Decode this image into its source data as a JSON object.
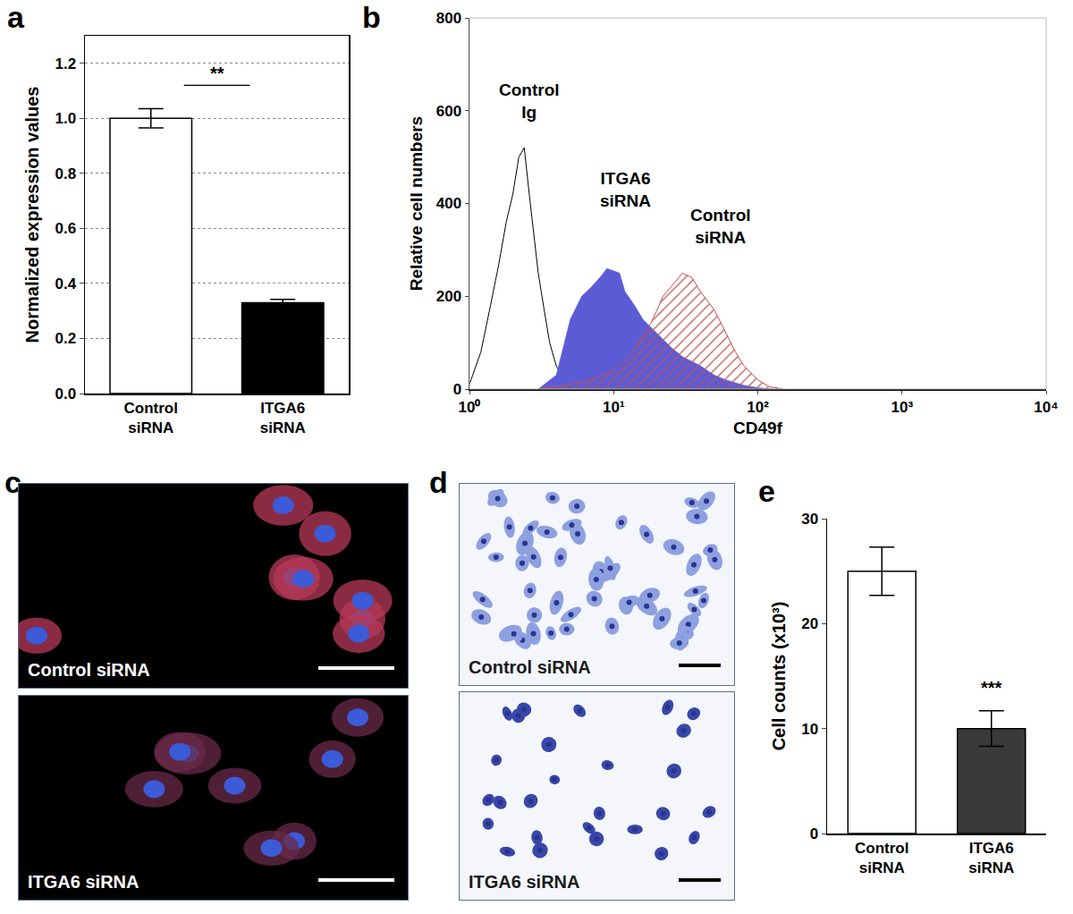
{
  "chart_data": [
    {
      "panel": "a",
      "type": "bar",
      "categories": [
        "Control siRNA",
        "ITGA6 siRNA"
      ],
      "values": [
        1.0,
        0.33
      ],
      "errors": [
        0.035,
        0.012
      ],
      "colors": [
        "#ffffff",
        "#000000"
      ],
      "y_label": "Normalized expression values",
      "ylim": [
        0,
        1.3
      ],
      "yticks": [
        {
          "value": 0,
          "label": "0.0"
        },
        {
          "value": 0.2,
          "label": "0.2"
        },
        {
          "value": 0.4,
          "label": "0.4"
        },
        {
          "value": 0.6,
          "label": "0.6"
        },
        {
          "value": 0.8,
          "label": "0.8"
        },
        {
          "value": 1.0,
          "label": "1.0"
        },
        {
          "value": 1.2,
          "label": "1.2"
        }
      ],
      "grid": true,
      "annotations": [
        {
          "text": "**",
          "y": 1.12,
          "span": [
            "Control siRNA",
            "ITGA6 siRNA"
          ]
        }
      ]
    },
    {
      "panel": "b",
      "type": "area",
      "log": "x",
      "x_label": "CD49f",
      "y_label": "Relative cell numbers",
      "xlim": [
        1,
        10000
      ],
      "xticks": [
        {
          "value": 1,
          "label": "10⁰"
        },
        {
          "value": 10,
          "label": "10¹"
        },
        {
          "value": 100,
          "label": "10²"
        },
        {
          "value": 1000,
          "label": "10³"
        },
        {
          "value": 10000,
          "label": "10⁴"
        }
      ],
      "ylim": [
        0,
        800
      ],
      "yticks": [
        0,
        200,
        400,
        600,
        800
      ],
      "grid": false,
      "series": [
        {
          "name": "Control Ig",
          "color": "#000000",
          "x": [
            1,
            1.2,
            1.4,
            1.6,
            1.8,
            2.0,
            2.2,
            2.4,
            2.6,
            2.8,
            3.0,
            3.3,
            3.6,
            4,
            4.5,
            5,
            5.5
          ],
          "values": [
            10,
            80,
            180,
            270,
            360,
            420,
            500,
            520,
            420,
            330,
            250,
            170,
            100,
            50,
            20,
            5,
            0
          ],
          "label_x": 2.6,
          "label_y": 620
        },
        {
          "name": "ITGA6 siRNA",
          "color": "#5b5bd6",
          "x": [
            3,
            4,
            5,
            6,
            7,
            8,
            9,
            10,
            11,
            12,
            14,
            16,
            20,
            25,
            30,
            40,
            50,
            60,
            80,
            100,
            130
          ],
          "values": [
            0,
            30,
            150,
            200,
            220,
            240,
            260,
            255,
            250,
            210,
            180,
            150,
            120,
            90,
            70,
            50,
            30,
            20,
            8,
            3,
            0
          ],
          "label_x": 12,
          "label_y": 430
        },
        {
          "name": "Control siRNA",
          "color": "#c0504d",
          "x": [
            3,
            5,
            7,
            10,
            13,
            15,
            18,
            20,
            22,
            25,
            28,
            30,
            35,
            40,
            50,
            60,
            70,
            80,
            100,
            120,
            150
          ],
          "values": [
            0,
            10,
            20,
            40,
            70,
            100,
            140,
            170,
            200,
            220,
            240,
            250,
            240,
            210,
            170,
            120,
            80,
            50,
            20,
            5,
            0
          ],
          "label_x": 55,
          "label_y": 350
        }
      ]
    },
    {
      "panel": "e",
      "type": "bar",
      "categories": [
        "Control siRNA",
        "ITGA6 siRNA"
      ],
      "values": [
        25,
        10
      ],
      "errors": [
        2.3,
        1.7
      ],
      "colors": [
        "#ffffff",
        "#3a3a3a"
      ],
      "y_label": "Cell counts (x10³)",
      "ylim": [
        0,
        30
      ],
      "yticks": [
        0,
        10,
        20,
        30
      ],
      "grid": false,
      "annotations": [
        {
          "text": "***",
          "y": 12.8,
          "category": "ITGA6 siRNA"
        }
      ]
    }
  ],
  "image_panels": [
    {
      "panel": "c",
      "type": "fluorescence",
      "captions": [
        "Control siRNA",
        "ITGA6 siRNA"
      ]
    },
    {
      "panel": "d",
      "type": "stained",
      "captions": [
        "Control siRNA",
        "ITGA6 siRNA"
      ]
    }
  ]
}
